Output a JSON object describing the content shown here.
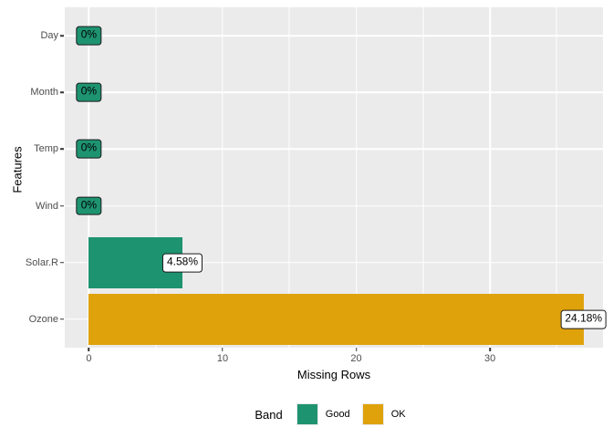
{
  "figure": {
    "background": "#FFFFFF",
    "panel_background": "#EBEBEB",
    "gridline_color": "#FFFFFF",
    "tick_label_color": "#4D4D4D"
  },
  "chart_data": {
    "type": "bar",
    "orientation": "horizontal",
    "title": "",
    "xlabel": "Missing Rows",
    "ylabel": "Features",
    "categories": [
      "Day",
      "Month",
      "Temp",
      "Wind",
      "Solar.R",
      "Ozone"
    ],
    "series": [
      {
        "name": "num_missing",
        "values": [
          0,
          0,
          0,
          0,
          7,
          37
        ]
      }
    ],
    "bar_labels": [
      "0%",
      "0%",
      "0%",
      "0%",
      "4.58%",
      "24.18%"
    ],
    "bands": [
      "Good",
      "Good",
      "Good",
      "Good",
      "Good",
      "OK"
    ],
    "colors": {
      "Good": "#1E9370",
      "OK": "#DFA20B"
    },
    "label_fill_nonzero": "#FFFFFF",
    "x_ticks": [
      0,
      10,
      20,
      30
    ],
    "x_minor_ticks": [
      5,
      15,
      25,
      35
    ],
    "xlim": [
      -1.8,
      38.45
    ],
    "grid": true,
    "bar_width_fraction": 0.9,
    "legend": {
      "title": "Band",
      "position": "bottom",
      "entries": [
        {
          "label": "Good",
          "color": "#1E9370"
        },
        {
          "label": "OK",
          "color": "#DFA20B"
        }
      ]
    }
  }
}
